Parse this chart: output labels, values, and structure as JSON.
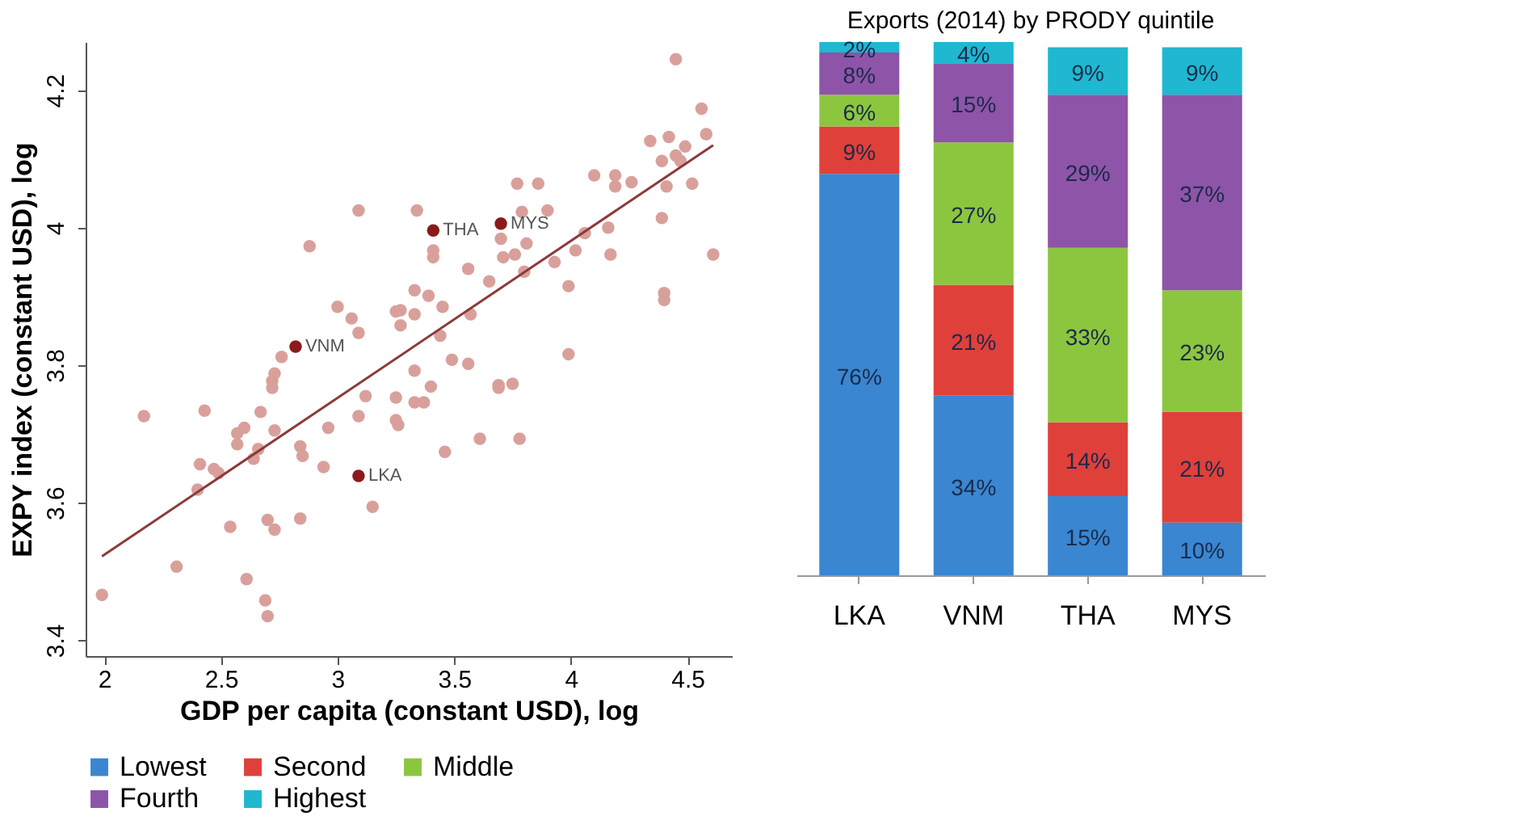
{
  "chart_data": [
    {
      "type": "scatter",
      "xlabel": "GDP per capita (constant USD), log",
      "ylabel": "EXPY index (constant USD), log",
      "xlim": [
        1.92,
        4.69
      ],
      "ylim": [
        3.377,
        4.27
      ],
      "xticks": [
        2,
        2.5,
        3,
        3.5,
        4,
        4.5
      ],
      "yticks": [
        3.4,
        3.6,
        3.8,
        4,
        4.2
      ],
      "grid": false,
      "legend": false,
      "marker": "circle",
      "series": [
        {
          "color": "#d9a09b",
          "x": [
            1.99,
            2.31,
            2.17,
            2.43,
            2.41,
            2.47,
            2.49,
            2.4,
            2.54,
            2.61,
            2.69,
            2.7,
            2.7,
            2.73,
            2.84,
            2.94,
            2.57,
            2.6,
            2.57,
            2.66,
            2.64,
            2.67,
            2.73,
            2.84,
            2.85,
            2.96,
            2.72,
            2.72,
            3.12,
            3.09,
            3.25,
            3.26,
            3.25,
            3.33,
            3.15,
            3.46,
            3.61,
            3.78,
            3.69,
            3.75,
            3.4,
            3.37,
            3.09,
            3.34,
            2.88,
            3.0,
            3.06,
            3.09,
            3.27,
            3.27,
            3.33,
            3.33,
            2.76,
            2.73,
            3.33,
            4.45,
            4.56,
            4.58,
            4.34,
            4.42,
            4.39,
            4.45,
            4.49,
            4.47,
            4.1,
            4.19,
            4.19,
            4.26,
            4.41,
            4.52,
            3.77,
            3.86,
            3.41,
            3.41,
            3.7,
            3.71,
            3.76,
            3.79,
            3.9,
            3.81,
            3.8,
            3.93,
            4.02,
            4.06,
            4.16,
            4.17,
            4.39,
            4.61,
            3.56,
            3.65,
            3.99,
            4.4,
            4.4,
            3.39,
            3.45,
            3.25,
            3.57,
            3.44,
            3.49,
            3.56,
            3.69,
            3.99
          ],
          "values": [
            3.466,
            3.507,
            3.726,
            3.734,
            3.656,
            3.649,
            3.643,
            3.619,
            3.565,
            3.489,
            3.458,
            3.435,
            3.575,
            3.561,
            3.577,
            3.652,
            3.701,
            3.709,
            3.685,
            3.678,
            3.664,
            3.732,
            3.705,
            3.682,
            3.668,
            3.709,
            3.767,
            3.777,
            3.755,
            3.726,
            3.72,
            3.713,
            3.753,
            3.746,
            3.594,
            3.674,
            3.693,
            3.693,
            3.767,
            3.773,
            3.769,
            3.746,
            4.025,
            4.025,
            3.973,
            3.885,
            3.868,
            3.847,
            3.88,
            3.858,
            3.874,
            3.909,
            3.812,
            3.788,
            3.792,
            4.245,
            4.173,
            4.136,
            4.126,
            4.132,
            4.097,
            4.105,
            4.118,
            4.097,
            4.076,
            4.076,
            4.06,
            4.066,
            4.06,
            4.064,
            4.064,
            4.064,
            3.967,
            3.957,
            3.984,
            3.957,
            3.961,
            4.023,
            4.025,
            3.977,
            3.936,
            3.95,
            3.967,
            3.992,
            4.0,
            3.961,
            4.014,
            3.961,
            3.94,
            3.922,
            3.915,
            3.905,
            3.895,
            3.901,
            3.885,
            3.878,
            3.874,
            3.843,
            3.808,
            3.802,
            3.771,
            3.816
          ]
        },
        {
          "color": "#8b1a1a",
          "x": [
            3.09,
            2.82,
            3.41,
            3.7
          ],
          "values": [
            3.639,
            3.827,
            3.996,
            4.006
          ]
        },
        {
          "type": "line",
          "marker": "none",
          "color": "#8b3a3a",
          "x": [
            1.99,
            4.61
          ],
          "values": [
            3.522,
            4.12
          ]
        }
      ],
      "annotations": [
        {
          "text": "LKA",
          "x": 3.09,
          "y": 3.639
        },
        {
          "text": "VNM",
          "x": 2.82,
          "y": 3.827
        },
        {
          "text": "THA",
          "x": 3.41,
          "y": 3.996
        },
        {
          "text": "MYS",
          "x": 3.7,
          "y": 4.006
        }
      ]
    },
    {
      "type": "bar",
      "stacked": true,
      "title": "Exports (2014) by PRODY quintile",
      "categories": [
        "LKA",
        "VNM",
        "THA",
        "MYS"
      ],
      "legend": "bottom",
      "series": [
        {
          "name": "Lowest",
          "color": "#3a86d0",
          "values": [
            76,
            34,
            15,
            10
          ],
          "value_labels": [
            "76%",
            "34%",
            "15%",
            "10%"
          ]
        },
        {
          "name": "Second",
          "color": "#e0403a",
          "values": [
            9,
            21,
            14,
            21
          ],
          "value_labels": [
            "9%",
            "21%",
            "14%",
            "21%"
          ]
        },
        {
          "name": "Middle",
          "color": "#8cc63f",
          "values": [
            6,
            27,
            33,
            23
          ],
          "value_labels": [
            "6%",
            "27%",
            "33%",
            "23%"
          ]
        },
        {
          "name": "Fourth",
          "color": "#8e54a8",
          "values": [
            8,
            15,
            29,
            37
          ],
          "value_labels": [
            "8%",
            "15%",
            "29%",
            "37%"
          ]
        },
        {
          "name": "Highest",
          "color": "#1fb8d0",
          "values": [
            2,
            4,
            9,
            9
          ],
          "value_labels": [
            "2%",
            "4%",
            "9%",
            "9%"
          ]
        }
      ]
    }
  ]
}
